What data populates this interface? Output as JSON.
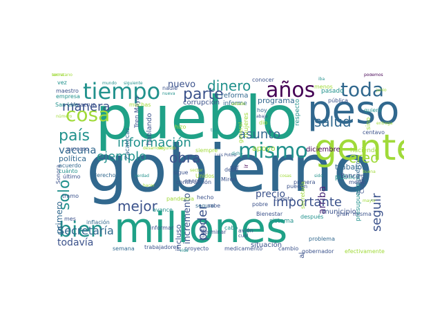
{
  "palette": {
    "purple": "#440154",
    "blue": "#3b528b",
    "teal": "#21918c",
    "green": "#1fa187",
    "lime": "#a0da39",
    "yellow": "#c8e020",
    "navy": "#31688e",
    "dark": "#482878"
  },
  "words": [
    {
      "text": "gobierno",
      "color": "#31688e"
    },
    {
      "text": "pueblo",
      "color": "#1fa187"
    },
    {
      "text": "millones",
      "color": "#1fa187"
    },
    {
      "text": "peso",
      "color": "#31688e"
    },
    {
      "text": "gente",
      "color": "#a0da39"
    },
    {
      "text": "tiempo",
      "color": "#21918c"
    },
    {
      "text": "años",
      "color": "#440154"
    },
    {
      "text": "toda",
      "color": "#31688e"
    },
    {
      "text": "cosa",
      "color": "#a0da39"
    },
    {
      "text": "mismo",
      "color": "#21918c"
    },
    {
      "text": "bien",
      "color": "#21918c"
    },
    {
      "text": "dinero",
      "color": "#21918c"
    },
    {
      "text": "salud",
      "color": "#31688e"
    },
    {
      "text": "parte",
      "color": "#3b528b"
    },
    {
      "text": "manera",
      "color": "#3b528b"
    },
    {
      "text": "país",
      "color": "#21918c"
    },
    {
      "text": "información",
      "color": "#21918c"
    },
    {
      "text": "asunto",
      "color": "#31688e"
    },
    {
      "text": "creo",
      "color": "#a0da39"
    },
    {
      "text": "ejemplo",
      "color": "#21918c"
    },
    {
      "text": "obra",
      "color": "#3b528b"
    },
    {
      "text": "solo",
      "color": "#21918c"
    },
    {
      "text": "mejor",
      "color": "#3b528b"
    },
    {
      "text": "importante",
      "color": "#3b528b"
    },
    {
      "text": "seguir",
      "color": "#3b528b"
    },
    {
      "text": "Secretaría",
      "color": "#31688e"
    },
    {
      "text": "vacuna",
      "color": "#31688e"
    },
    {
      "text": "nuevo",
      "color": "#3b528b"
    },
    {
      "text": "primero",
      "color": "#31688e"
    },
    {
      "text": "poder",
      "color": "#3b528b"
    },
    {
      "text": "precio",
      "color": "#3b528b"
    },
    {
      "text": "arriba",
      "color": "#482878"
    },
    {
      "text": "programa",
      "color": "#31688e"
    },
    {
      "text": "todavía",
      "color": "#3b528b"
    },
    {
      "text": "apoyo",
      "color": "#a0da39"
    },
    {
      "text": "trabajo",
      "color": "#31688e"
    },
    {
      "text": "incremento",
      "color": "#3b528b"
    },
    {
      "text": "incluso",
      "color": "#3b528b"
    },
    {
      "text": "diciembre",
      "color": "#440154"
    },
    {
      "text": "política",
      "color": "#31688e"
    },
    {
      "text": "público",
      "color": "#21918c"
    },
    {
      "text": "municipio",
      "color": "#3b528b"
    },
    {
      "text": "situación",
      "color": "#3b528b"
    },
    {
      "text": "presupuesto",
      "color": "#21918c"
    },
    {
      "text": "aeropuerto",
      "color": "#31688e"
    },
    {
      "text": "corrupción",
      "color": "#3b528b"
    },
    {
      "text": "reforma",
      "color": "#31688e"
    },
    {
      "text": "informe",
      "color": "#31688e"
    },
    {
      "text": "Tren Maya",
      "color": "#3b528b"
    },
    {
      "text": "hablando",
      "color": "#3b528b"
    },
    {
      "text": "Zacatecas",
      "color": "#31688e"
    },
    {
      "text": "mujeres",
      "color": "#a0da39"
    },
    {
      "text": "respecto",
      "color": "#21918c"
    },
    {
      "text": "pasado",
      "color": "#21918c"
    },
    {
      "text": "haciendo",
      "color": "#a0da39"
    },
    {
      "text": "quiero",
      "color": "#21918c"
    },
    {
      "text": "centavo",
      "color": "#3b528b"
    },
    {
      "text": "sino",
      "color": "#a0da39"
    },
    {
      "text": "Banco",
      "color": "#3b528b"
    },
    {
      "text": "San Luis",
      "color": "#21918c"
    },
    {
      "text": "Veracruz",
      "color": "#3b528b"
    },
    {
      "text": "muchas",
      "color": "#a0da39"
    },
    {
      "text": "maestro",
      "color": "#3b528b"
    },
    {
      "text": "empresa",
      "color": "#21918c"
    },
    {
      "text": "vez",
      "color": "#21918c"
    },
    {
      "text": "mundo",
      "color": "#21918c"
    },
    {
      "text": "siguiente",
      "color": "#21918c"
    },
    {
      "text": "nadie",
      "color": "#3b528b"
    },
    {
      "text": "nueva",
      "color": "#21918c"
    },
    {
      "text": "conocer",
      "color": "#3b528b"
    },
    {
      "text": "menos",
      "color": "#a0da39"
    },
    {
      "text": "iba",
      "color": "#21918c"
    },
    {
      "text": "podemos",
      "color": "#440154"
    },
    {
      "text": "pública",
      "color": "#3b528b"
    },
    {
      "text": "hoy",
      "color": "#31688e"
    },
    {
      "text": "abajo",
      "color": "#3b528b"
    },
    {
      "text": "tipo",
      "color": "#21918c"
    },
    {
      "text": "hizo",
      "color": "#a0da39"
    },
    {
      "text": "dio",
      "color": "#a0da39"
    },
    {
      "text": "general",
      "color": "#a0da39"
    },
    {
      "text": "siempre",
      "color": "#a0da39"
    },
    {
      "text": "Luis Potosí",
      "color": "#3b528b"
    },
    {
      "text": "Sonora",
      "color": "#3b528b"
    },
    {
      "text": "proceso",
      "color": "#3b528b"
    },
    {
      "text": "acuerdo",
      "color": "#31688e"
    },
    {
      "text": "cuánto",
      "color": "#21918c"
    },
    {
      "text": "último",
      "color": "#3b528b"
    },
    {
      "text": "mes",
      "color": "#3b528b"
    },
    {
      "text": "inflación",
      "color": "#31688e"
    },
    {
      "text": "derecho",
      "color": "#31688e"
    },
    {
      "text": "semana",
      "color": "#31688e"
    },
    {
      "text": "construcción",
      "color": "#3b528b"
    },
    {
      "text": "hecho",
      "color": "#3b528b"
    },
    {
      "text": "seguro",
      "color": "#31688e"
    },
    {
      "text": "Unidos",
      "color": "#a0da39"
    },
    {
      "text": "debe",
      "color": "#3b528b"
    },
    {
      "text": "Miren",
      "color": "#3b528b"
    },
    {
      "text": "ir",
      "color": "#440154"
    },
    {
      "text": "pueden",
      "color": "#3b528b"
    },
    {
      "text": "cuenta",
      "color": "#3b528b"
    },
    {
      "text": "Bienestar",
      "color": "#3b528b"
    },
    {
      "text": "cabo",
      "color": "#21918c"
    },
    {
      "text": "terminar",
      "color": "#3b528b"
    },
    {
      "text": "informar",
      "color": "#3b528b"
    },
    {
      "text": "trabajadores",
      "color": "#3b528b"
    },
    {
      "text": "proyecto",
      "color": "#3b528b"
    },
    {
      "text": "medicamento",
      "color": "#3b528b"
    },
    {
      "text": "cambio",
      "color": "#3b528b"
    },
    {
      "text": "gobernador",
      "color": "#3b528b"
    },
    {
      "text": "efectivamente",
      "color": "#a0da39"
    },
    {
      "text": "Nacional",
      "color": "#3b528b"
    },
    {
      "text": "problema",
      "color": "#31688e"
    },
    {
      "text": "gran",
      "color": "#3b528b"
    },
    {
      "text": "misma",
      "color": "#3b528b"
    },
    {
      "text": "medio",
      "color": "#3b528b"
    },
    {
      "text": "Ciudad",
      "color": "#3b528b"
    },
    {
      "text": "primera",
      "color": "#3b528b"
    },
    {
      "text": "secretaría",
      "color": "#a0da39"
    },
    {
      "text": "después",
      "color": "#21918c"
    },
    {
      "text": "sistema",
      "color": "#21918c"
    },
    {
      "text": "avión",
      "color": "#3b528b"
    },
    {
      "text": "cuál",
      "color": "#3b528b"
    },
    {
      "text": "pobre",
      "color": "#3b528b"
    },
    {
      "text": "cuatro",
      "color": "#3b528b"
    },
    {
      "text": "pandemia",
      "color": "#a0da39"
    },
    {
      "text": "avance",
      "color": "#21918c"
    },
    {
      "text": "sabe",
      "color": "#3b528b"
    },
    {
      "text": "dar",
      "color": "#3b528b"
    },
    {
      "text": "enero",
      "color": "#3b528b"
    },
    {
      "text": "sigue",
      "color": "#3b528b"
    },
    {
      "text": "tramo",
      "color": "#3b528b"
    },
    {
      "text": "vida",
      "color": "#21918c"
    },
    {
      "text": "verdad",
      "color": "#21918c"
    },
    {
      "text": "sido",
      "color": "#21918c"
    },
    {
      "text": "buena",
      "color": "#a0da39"
    },
    {
      "text": "mayor",
      "color": "#a0da39"
    },
    {
      "text": "dicho",
      "color": "#21918c"
    },
    {
      "text": "desarrollo",
      "color": "#a0da39"
    },
    {
      "text": "segundo",
      "color": "#a0da39"
    },
    {
      "text": "sector",
      "color": "#a0da39"
    },
    {
      "text": "hacer",
      "color": "#a0da39"
    },
    {
      "text": "junio",
      "color": "#a0da39"
    },
    {
      "text": "entrega",
      "color": "#a0da39"
    },
    {
      "text": "número",
      "color": "#a0da39"
    },
    {
      "text": "estado",
      "color": "#a0da39"
    },
    {
      "text": "cosas",
      "color": "#a0da39"
    },
    {
      "text": "forma",
      "color": "#a0da39"
    },
    {
      "text": "secretario",
      "color": "#a0da39"
    }
  ]
}
